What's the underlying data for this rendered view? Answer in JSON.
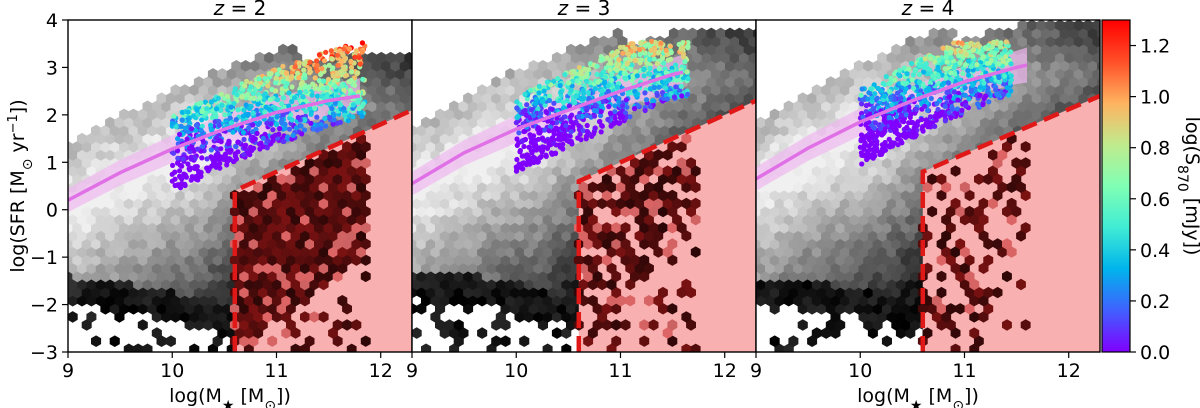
{
  "chart_data": {
    "type": "scatter",
    "description_free": true,
    "shared_y": {
      "label_prefix": "log(SFR [M",
      "label_sun": "⊙",
      "label_mid": " yr",
      "label_sup": "−1",
      "label_suffix": "])",
      "ylim": [
        -3,
        4
      ],
      "ticks": [
        -3,
        -2,
        -1,
        0,
        1,
        2,
        3,
        4
      ]
    },
    "colorbar": {
      "label_prefix": "log(S",
      "label_sub": "870",
      "label_suffix": " [mJy])",
      "range": [
        0.0,
        1.3
      ],
      "ticks": [
        "0.0",
        "0.2",
        "0.4",
        "0.6",
        "0.8",
        "1.0",
        "1.2"
      ],
      "colormap": [
        "#8000ff",
        "#4060ff",
        "#00b4ec",
        "#40ecd4",
        "#80ffb4",
        "#c0eb8d",
        "#ffb360",
        "#ff4f28",
        "#ff0000"
      ]
    },
    "colors": {
      "main_sequence": "#e070e6",
      "main_sequence_band": "#f0b8f0",
      "quiescent_region": "#f9b0b0",
      "quiescent_boundary": "#e01818",
      "quiescent_hex": "#6e1010"
    },
    "panels": [
      {
        "title_prefix": "z",
        "title_value": " = 2",
        "xlabel_prefix": "log(M",
        "xlabel_star": "★",
        "xlabel_mid": " [M",
        "xlabel_sun": "⊙",
        "xlabel_suffix": "])",
        "xlim": [
          9,
          12.3
        ],
        "xticks": [
          9,
          10,
          11,
          12
        ],
        "main_sequence": {
          "x": [
            9.0,
            9.5,
            10.0,
            10.5,
            11.0,
            11.5,
            11.8
          ],
          "y": [
            0.2,
            0.78,
            1.28,
            1.7,
            2.05,
            2.3,
            2.4
          ]
        },
        "quiescent_cut": {
          "mass": 10.6,
          "sfr_at_cut": 0.4,
          "sfr_at_edge": 2.1
        }
      },
      {
        "title_prefix": "z",
        "title_value": " = 3",
        "xlabel_prefix": "",
        "xlabel_star": "",
        "xlabel_mid": "",
        "xlabel_sun": "",
        "xlabel_suffix": "",
        "xlim": [
          9,
          12.3
        ],
        "xticks": [
          9,
          10,
          11,
          12
        ],
        "main_sequence": {
          "x": [
            9.0,
            9.5,
            10.0,
            10.5,
            11.0,
            11.5,
            11.6
          ],
          "y": [
            0.55,
            1.2,
            1.7,
            2.1,
            2.5,
            2.85,
            2.9
          ]
        },
        "quiescent_cut": {
          "mass": 10.6,
          "sfr_at_cut": 0.6,
          "sfr_at_edge": 2.3
        }
      },
      {
        "title_prefix": "z",
        "title_value": " = 4",
        "xlabel_prefix": "log(M",
        "xlabel_star": "★",
        "xlabel_mid": " [M",
        "xlabel_sun": "⊙",
        "xlabel_suffix": "])",
        "xlim": [
          9,
          12.3
        ],
        "xticks": [
          9,
          10,
          11,
          12
        ],
        "main_sequence": {
          "x": [
            9.0,
            9.5,
            10.0,
            10.5,
            11.0,
            11.5,
            11.6
          ],
          "y": [
            0.65,
            1.3,
            1.85,
            2.3,
            2.7,
            3.0,
            3.05
          ]
        },
        "quiescent_cut": {
          "mass": 10.6,
          "sfr_at_cut": 0.8,
          "sfr_at_edge": 2.4
        }
      }
    ]
  }
}
